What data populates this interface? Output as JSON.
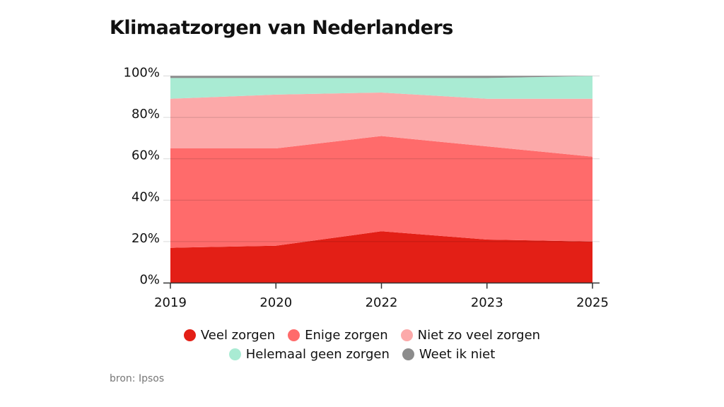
{
  "chart_data": {
    "type": "area",
    "stacked": true,
    "title": "Klimaatzorgen van Nederlanders",
    "source": "bron: Ipsos",
    "categories": [
      "2019",
      "2020",
      "2022",
      "2023",
      "2025"
    ],
    "ylim": [
      0,
      100
    ],
    "yticks": [
      0,
      20,
      40,
      60,
      80,
      100
    ],
    "ytick_labels": [
      "0%",
      "20%",
      "40%",
      "60%",
      "80%",
      "100%"
    ],
    "grid": true,
    "legend_position": "bottom",
    "series": [
      {
        "name": "Veel zorgen",
        "color": "#e31f16",
        "values": [
          17,
          18,
          25,
          21,
          20
        ]
      },
      {
        "name": "Enige zorgen",
        "color": "#ff6b6b",
        "values": [
          48,
          47,
          46,
          45,
          41
        ]
      },
      {
        "name": "Niet zo veel zorgen",
        "color": "#fca9a9",
        "values": [
          24,
          26,
          21,
          23,
          28
        ]
      },
      {
        "name": "Helemaal geen zorgen",
        "color": "#a9ebd3",
        "values": [
          10,
          8,
          7,
          10,
          11
        ]
      },
      {
        "name": "Weet ik niet",
        "color": "#8c8c8c",
        "values": [
          1,
          1,
          1,
          1,
          0
        ]
      }
    ]
  }
}
